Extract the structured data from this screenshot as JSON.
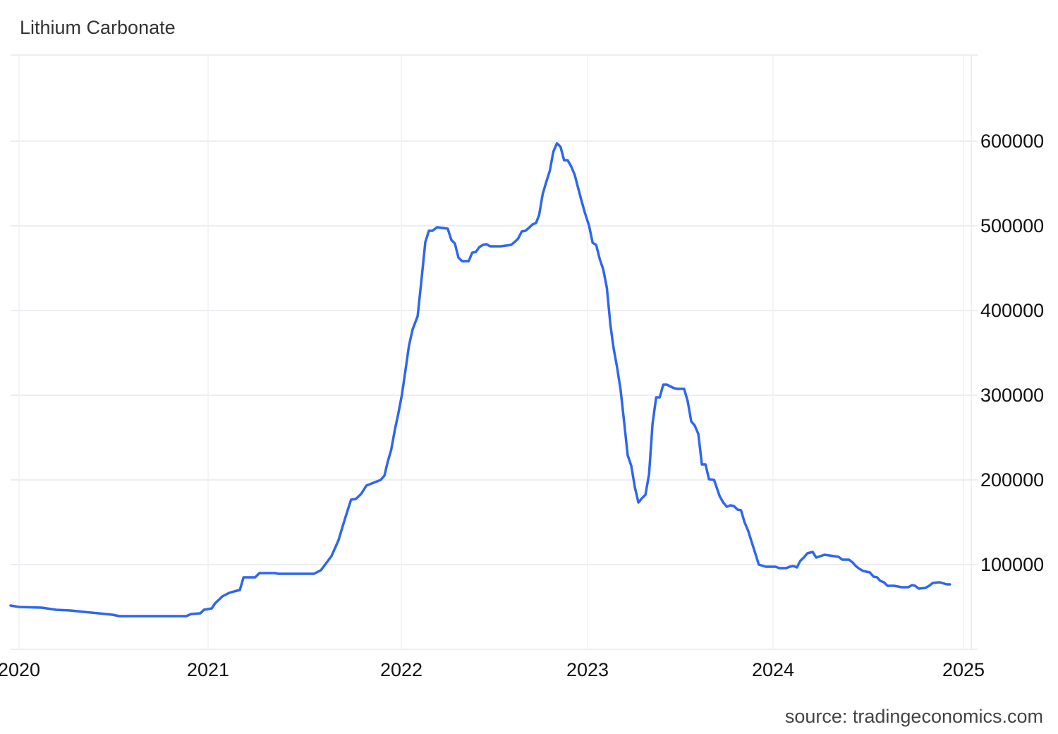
{
  "chart_data": {
    "type": "line",
    "title": "Lithium Carbonate",
    "source": "source: tradingeconomics.com",
    "xlabel": "",
    "ylabel": "",
    "x_ticks": [
      "2020",
      "2021",
      "2022",
      "2023",
      "2024",
      "2025"
    ],
    "y_ticks": [
      "100000",
      "200000",
      "300000",
      "400000",
      "500000",
      "600000"
    ],
    "ylim": [
      0,
      700000
    ],
    "xlim": [
      "2019-12-22",
      "2025-01-08"
    ],
    "grid": true,
    "y_axis_side": "right",
    "line_color": "#2d66f0",
    "series": [
      {
        "x": [
          "2019-12-15",
          "2020-01-01",
          "2020-02-14",
          "2020-03-13",
          "2020-04-09",
          "2020-05-06",
          "2020-06-03",
          "2020-06-30",
          "2020-07-13",
          "2020-11-20",
          "2020-11-29",
          "2020-12-17",
          "2020-12-24",
          "2021-01-08",
          "2021-01-14",
          "2021-01-28",
          "2021-02-10",
          "2021-02-19",
          "2021-03-02",
          "2021-03-09",
          "2021-03-31",
          "2021-04-08",
          "2021-05-07",
          "2021-05-14",
          "2021-07-20",
          "2021-08-02",
          "2021-08-22",
          "2021-09-04",
          "2021-09-17",
          "2021-09-28",
          "2021-10-07",
          "2021-10-17",
          "2021-10-27",
          "2021-11-23",
          "2021-11-30",
          "2021-12-06",
          "2021-12-13",
          "2021-12-20",
          "2021-12-26",
          "2022-01-02",
          "2022-01-09",
          "2022-01-16",
          "2022-01-23",
          "2022-02-02",
          "2022-02-09",
          "2022-02-17",
          "2022-02-24",
          "2022-03-03",
          "2022-03-12",
          "2022-04-02",
          "2022-04-09",
          "2022-04-16",
          "2022-04-23",
          "2022-04-30",
          "2022-05-13",
          "2022-05-20",
          "2022-05-27",
          "2022-06-03",
          "2022-06-10",
          "2022-06-17",
          "2022-06-24",
          "2022-07-15",
          "2022-08-04",
          "2022-08-11",
          "2022-08-18",
          "2022-08-25",
          "2022-09-01",
          "2022-09-08",
          "2022-09-15",
          "2022-09-22",
          "2022-09-28",
          "2022-10-05",
          "2022-10-12",
          "2022-10-19",
          "2022-10-26",
          "2022-11-02",
          "2022-11-09",
          "2022-11-16",
          "2022-11-23",
          "2022-11-30",
          "2022-12-07",
          "2022-12-13",
          "2022-12-20",
          "2022-12-27",
          "2023-01-04",
          "2023-01-11",
          "2023-01-18",
          "2023-01-25",
          "2023-02-01",
          "2023-02-08",
          "2023-02-15",
          "2023-02-21",
          "2023-02-28",
          "2023-03-07",
          "2023-03-14",
          "2023-03-21",
          "2023-03-28",
          "2023-04-04",
          "2023-04-11",
          "2023-04-18",
          "2023-04-25",
          "2023-05-02",
          "2023-05-09",
          "2023-05-16",
          "2023-05-23",
          "2023-05-30",
          "2023-06-06",
          "2023-06-20",
          "2023-06-27",
          "2023-07-10",
          "2023-07-17",
          "2023-07-24",
          "2023-07-31",
          "2023-08-07",
          "2023-08-14",
          "2023-08-21",
          "2023-08-28",
          "2023-09-07",
          "2023-09-18",
          "2023-09-25",
          "2023-10-02",
          "2023-10-09",
          "2023-10-16",
          "2023-10-23",
          "2023-10-30",
          "2023-11-06",
          "2023-11-13",
          "2023-11-20",
          "2023-11-27",
          "2023-12-04",
          "2023-12-18",
          "2024-01-06",
          "2024-01-13",
          "2024-01-26",
          "2024-02-02",
          "2024-02-09",
          "2024-02-16",
          "2024-02-22",
          "2024-02-29",
          "2024-03-07",
          "2024-03-17",
          "2024-03-24",
          "2024-04-09",
          "2024-05-06",
          "2024-05-13",
          "2024-05-26",
          "2024-06-02",
          "2024-06-08",
          "2024-06-15",
          "2024-06-22",
          "2024-07-05",
          "2024-07-12",
          "2024-07-19",
          "2024-07-25",
          "2024-08-01",
          "2024-08-08",
          "2024-08-21",
          "2024-09-04",
          "2024-09-17",
          "2024-09-24",
          "2024-09-30",
          "2024-10-07",
          "2024-10-20",
          "2024-10-27",
          "2024-11-03",
          "2024-11-16",
          "2024-11-30",
          "2024-12-06"
        ],
        "y": [
          51700,
          50000,
          49200,
          46700,
          45800,
          44200,
          42500,
          40800,
          39200,
          39200,
          41700,
          42500,
          46700,
          48300,
          54200,
          62500,
          66700,
          68300,
          70000,
          85000,
          85000,
          90000,
          90000,
          89200,
          89200,
          93300,
          110000,
          128300,
          155000,
          176700,
          177500,
          183300,
          193300,
          200000,
          205000,
          220800,
          235800,
          260000,
          277500,
          300000,
          329200,
          358300,
          377500,
          393300,
          433300,
          480800,
          494200,
          494200,
          498300,
          496700,
          483300,
          479200,
          462500,
          458300,
          458300,
          468300,
          469200,
          475000,
          477500,
          478300,
          475800,
          475800,
          477500,
          480800,
          485000,
          493300,
          494200,
          497500,
          501700,
          503300,
          512500,
          537500,
          551700,
          565000,
          587500,
          597500,
          593300,
          577500,
          577500,
          570000,
          560000,
          545800,
          530000,
          515000,
          500000,
          480000,
          477500,
          460800,
          448300,
          426700,
          383300,
          356700,
          333300,
          306700,
          268300,
          229200,
          216700,
          191700,
          173300,
          178300,
          182500,
          206700,
          266700,
          297500,
          297500,
          312500,
          312500,
          308300,
          307500,
          307500,
          293300,
          269200,
          264200,
          254200,
          218300,
          218300,
          200800,
          200000,
          180800,
          173300,
          168300,
          170000,
          169200,
          165000,
          164200,
          150000,
          140000,
          126700,
          113300,
          100000,
          97500,
          97500,
          95800,
          95800,
          97500,
          98300,
          96700,
          104200,
          108300,
          113300,
          115000,
          108300,
          111700,
          109200,
          105800,
          105800,
          102500,
          98300,
          95000,
          92500,
          90800,
          85800,
          85000,
          80800,
          79200,
          75000,
          75000,
          73300,
          73300,
          75800,
          75000,
          71700,
          72500,
          75000,
          78300,
          79200,
          76700,
          76700
        ]
      }
    ]
  }
}
